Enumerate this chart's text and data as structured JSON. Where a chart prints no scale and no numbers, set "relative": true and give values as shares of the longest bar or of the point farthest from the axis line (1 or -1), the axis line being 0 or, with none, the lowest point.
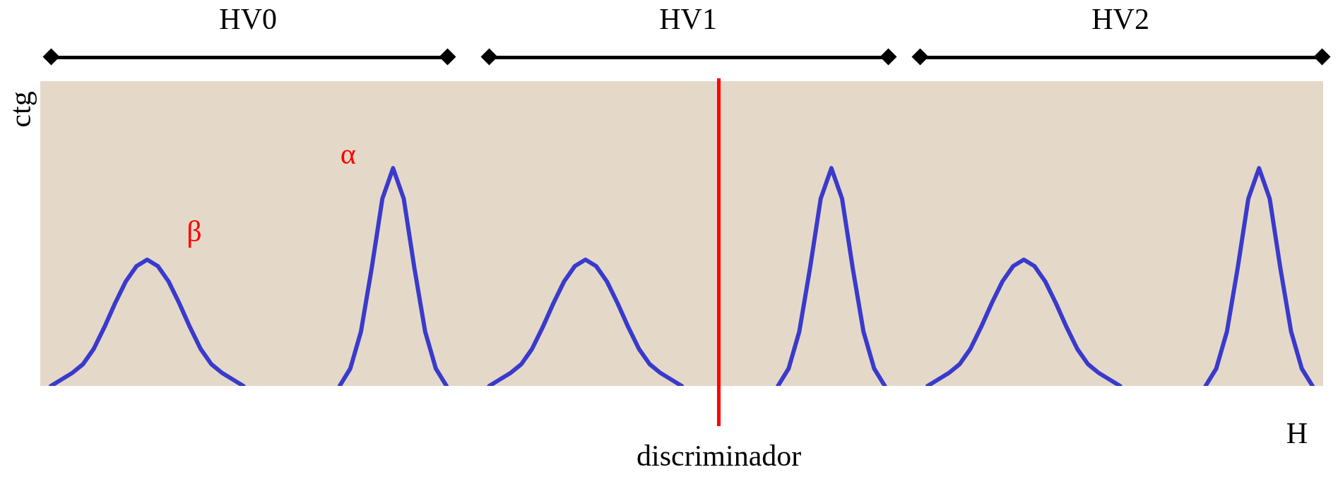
{
  "chart_data": {
    "type": "line",
    "relative": true,
    "tick_labels": false,
    "xlabel": "H",
    "ylabel": "ctg",
    "categories": [
      null,
      null,
      null,
      null,
      null,
      null,
      null,
      null,
      null,
      null,
      null,
      null,
      null,
      null,
      null,
      null,
      null,
      null,
      null,
      null,
      null,
      null,
      null,
      null,
      null,
      null,
      null,
      null,
      null,
      null,
      null,
      null,
      null,
      null,
      null,
      null,
      null,
      null,
      null,
      null,
      null,
      null,
      null,
      null,
      null,
      null,
      null,
      null,
      null,
      null,
      null,
      null,
      null,
      null,
      null,
      null,
      null,
      null,
      null,
      null,
      null,
      null,
      null,
      null,
      null,
      null,
      null,
      null,
      null,
      null,
      null,
      null,
      null,
      null,
      null,
      null,
      null,
      null,
      null,
      null,
      null,
      null,
      null,
      null,
      null,
      null,
      null,
      null,
      null,
      null,
      null,
      null,
      null,
      null,
      null,
      null,
      null,
      null,
      null,
      null,
      null,
      null,
      null,
      null,
      null,
      null,
      null,
      null,
      null,
      null,
      null,
      null,
      null,
      null,
      null,
      null,
      null,
      null,
      null,
      null,
      null
    ],
    "series": [
      {
        "color": "#3a3acc",
        "values": [
          null,
          0,
          0.03,
          0.06,
          0.1,
          0.17,
          0.27,
          0.38,
          0.48,
          0.55,
          0.58,
          0.55,
          0.48,
          0.38,
          0.27,
          0.17,
          0.1,
          0.06,
          0.03,
          0,
          null,
          null,
          null,
          null,
          null,
          null,
          null,
          null,
          null,
          null,
          null,
          null,
          null,
          null,
          null,
          null,
          null,
          null,
          null,
          null,
          null,
          null,
          null,
          null,
          null,
          null,
          null,
          null,
          null,
          null,
          null,
          null,
          null,
          null,
          null,
          null,
          null,
          null,
          null,
          null,
          null,
          null,
          null,
          null,
          null,
          null,
          null,
          null,
          null,
          null,
          null,
          null,
          null,
          null,
          null,
          null,
          null,
          null,
          null,
          null,
          null,
          null,
          null,
          null,
          null,
          null,
          null,
          null,
          null,
          null,
          null,
          null,
          null,
          null,
          null,
          null,
          null,
          null,
          null,
          null,
          null,
          null,
          null,
          null,
          null,
          null,
          null,
          null,
          null,
          null,
          null,
          null,
          null,
          null,
          null,
          null,
          null,
          null,
          null,
          null,
          null
        ]
      },
      {
        "color": "#3a3acc",
        "values": [
          null,
          null,
          null,
          null,
          null,
          null,
          null,
          null,
          null,
          null,
          null,
          null,
          null,
          null,
          null,
          null,
          null,
          null,
          null,
          null,
          null,
          null,
          null,
          null,
          null,
          null,
          null,
          null,
          0,
          0.08,
          0.25,
          0.54,
          0.86,
          1,
          0.86,
          0.54,
          0.25,
          0.08,
          0,
          null,
          null,
          null,
          null,
          null,
          null,
          null,
          null,
          null,
          null,
          null,
          null,
          null,
          null,
          null,
          null,
          null,
          null,
          null,
          null,
          null,
          null,
          null,
          null,
          null,
          null,
          null,
          null,
          null,
          null,
          null,
          null,
          null,
          null,
          null,
          null,
          null,
          null,
          null,
          null,
          null,
          null,
          null,
          null,
          null,
          null,
          null,
          null,
          null,
          null,
          null,
          null,
          null,
          null,
          null,
          null,
          null,
          null,
          null,
          null,
          null,
          null,
          null,
          null,
          null,
          null,
          null,
          null,
          null,
          null,
          null,
          null,
          null,
          null,
          null,
          null,
          null,
          null,
          null,
          null,
          null,
          null
        ]
      },
      {
        "color": "#3a3acc",
        "values": [
          null,
          null,
          null,
          null,
          null,
          null,
          null,
          null,
          null,
          null,
          null,
          null,
          null,
          null,
          null,
          null,
          null,
          null,
          null,
          null,
          null,
          null,
          null,
          null,
          null,
          null,
          null,
          null,
          null,
          null,
          null,
          null,
          null,
          null,
          null,
          null,
          null,
          null,
          null,
          null,
          null,
          null,
          0,
          0.03,
          0.06,
          0.1,
          0.17,
          0.27,
          0.38,
          0.48,
          0.55,
          0.58,
          0.55,
          0.48,
          0.38,
          0.27,
          0.17,
          0.1,
          0.06,
          0.03,
          0,
          null,
          null,
          null,
          null,
          null,
          null,
          null,
          null,
          null,
          null,
          null,
          null,
          null,
          null,
          null,
          null,
          null,
          null,
          null,
          null,
          null,
          null,
          null,
          null,
          null,
          null,
          null,
          null,
          null,
          null,
          null,
          null,
          null,
          null,
          null,
          null,
          null,
          null,
          null,
          null,
          null,
          null,
          null,
          null,
          null,
          null,
          null,
          null,
          null,
          null,
          null,
          null,
          null,
          null,
          null,
          null,
          null,
          null,
          null,
          null
        ]
      },
      {
        "color": "#3a3acc",
        "values": [
          null,
          null,
          null,
          null,
          null,
          null,
          null,
          null,
          null,
          null,
          null,
          null,
          null,
          null,
          null,
          null,
          null,
          null,
          null,
          null,
          null,
          null,
          null,
          null,
          null,
          null,
          null,
          null,
          null,
          null,
          null,
          null,
          null,
          null,
          null,
          null,
          null,
          null,
          null,
          null,
          null,
          null,
          null,
          null,
          null,
          null,
          null,
          null,
          null,
          null,
          null,
          null,
          null,
          null,
          null,
          null,
          null,
          null,
          null,
          null,
          null,
          null,
          null,
          null,
          null,
          null,
          null,
          null,
          null,
          0,
          0.08,
          0.25,
          0.54,
          0.86,
          1,
          0.86,
          0.54,
          0.25,
          0.08,
          0,
          null,
          null,
          null,
          null,
          null,
          null,
          null,
          null,
          null,
          null,
          null,
          null,
          null,
          null,
          null,
          null,
          null,
          null,
          null,
          null,
          null,
          null,
          null,
          null,
          null,
          null,
          null,
          null,
          null,
          null,
          null,
          null,
          null,
          null,
          null,
          null,
          null,
          null,
          null,
          null,
          null
        ]
      },
      {
        "color": "#3a3acc",
        "values": [
          null,
          null,
          null,
          null,
          null,
          null,
          null,
          null,
          null,
          null,
          null,
          null,
          null,
          null,
          null,
          null,
          null,
          null,
          null,
          null,
          null,
          null,
          null,
          null,
          null,
          null,
          null,
          null,
          null,
          null,
          null,
          null,
          null,
          null,
          null,
          null,
          null,
          null,
          null,
          null,
          null,
          null,
          null,
          null,
          null,
          null,
          null,
          null,
          null,
          null,
          null,
          null,
          null,
          null,
          null,
          null,
          null,
          null,
          null,
          null,
          null,
          null,
          null,
          null,
          null,
          null,
          null,
          null,
          null,
          null,
          null,
          null,
          null,
          null,
          null,
          null,
          null,
          null,
          null,
          null,
          null,
          null,
          null,
          0,
          0.03,
          0.06,
          0.1,
          0.17,
          0.27,
          0.38,
          0.48,
          0.55,
          0.58,
          0.55,
          0.48,
          0.38,
          0.27,
          0.17,
          0.1,
          0.06,
          0.03,
          0,
          null,
          null,
          null,
          null,
          null,
          null,
          null,
          null,
          null,
          null,
          null,
          null,
          null,
          null,
          null,
          null,
          null,
          null,
          null
        ]
      },
      {
        "color": "#3a3acc",
        "values": [
          null,
          null,
          null,
          null,
          null,
          null,
          null,
          null,
          null,
          null,
          null,
          null,
          null,
          null,
          null,
          null,
          null,
          null,
          null,
          null,
          null,
          null,
          null,
          null,
          null,
          null,
          null,
          null,
          null,
          null,
          null,
          null,
          null,
          null,
          null,
          null,
          null,
          null,
          null,
          null,
          null,
          null,
          null,
          null,
          null,
          null,
          null,
          null,
          null,
          null,
          null,
          null,
          null,
          null,
          null,
          null,
          null,
          null,
          null,
          null,
          null,
          null,
          null,
          null,
          null,
          null,
          null,
          null,
          null,
          null,
          null,
          null,
          null,
          null,
          null,
          null,
          null,
          null,
          null,
          null,
          null,
          null,
          null,
          null,
          null,
          null,
          null,
          null,
          null,
          null,
          null,
          null,
          null,
          null,
          null,
          null,
          null,
          null,
          null,
          null,
          null,
          null,
          null,
          null,
          null,
          null,
          null,
          null,
          null,
          0,
          0.08,
          0.25,
          0.54,
          0.86,
          1,
          0.86,
          0.54,
          0.25,
          0.08,
          0,
          null
        ]
      }
    ],
    "annotations": [
      "α",
      "β",
      "HV0",
      "HV1",
      "HV2",
      "discriminador"
    ]
  }
}
